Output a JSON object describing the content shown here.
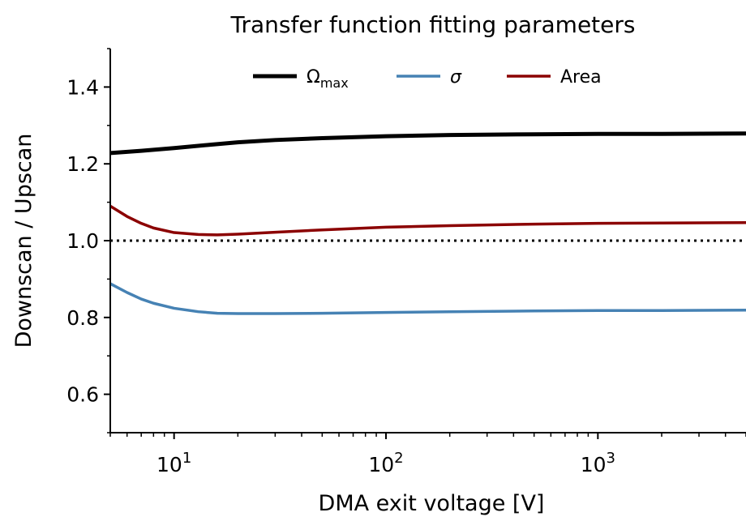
{
  "chart_data": {
    "type": "line",
    "title": "Transfer function fitting parameters",
    "xlabel": "DMA exit voltage [V]",
    "ylabel": "Downscan / Upscan",
    "xscale": "log",
    "xlim": [
      5,
      5000
    ],
    "ylim": [
      0.5,
      1.5
    ],
    "x_ticks": [
      {
        "value": 10,
        "base": "10",
        "exp": "1"
      },
      {
        "value": 100,
        "base": "10",
        "exp": "2"
      },
      {
        "value": 1000,
        "base": "10",
        "exp": "3"
      }
    ],
    "y_ticks": [
      {
        "value": 0.6,
        "label": "0.6"
      },
      {
        "value": 0.8,
        "label": "0.8"
      },
      {
        "value": 1.0,
        "label": "1.0"
      },
      {
        "value": 1.2,
        "label": "1.2"
      },
      {
        "value": 1.4,
        "label": "1.4"
      }
    ],
    "reference_line": {
      "y": 1.0,
      "style": "dotted",
      "color": "#000000"
    },
    "legend": {
      "placement": "top-center",
      "columns": 3
    },
    "series": [
      {
        "name": "Ω",
        "name_sub": "max",
        "color": "#000000",
        "points": [
          [
            5,
            1.228
          ],
          [
            7,
            1.234
          ],
          [
            10,
            1.241
          ],
          [
            15,
            1.25
          ],
          [
            20,
            1.256
          ],
          [
            30,
            1.262
          ],
          [
            50,
            1.267
          ],
          [
            100,
            1.272
          ],
          [
            200,
            1.275
          ],
          [
            500,
            1.277
          ],
          [
            1000,
            1.278
          ],
          [
            2000,
            1.278
          ],
          [
            5000,
            1.279
          ]
        ]
      },
      {
        "name": "σ",
        "color": "#4682b4",
        "points": [
          [
            5,
            0.888
          ],
          [
            6,
            0.865
          ],
          [
            7,
            0.848
          ],
          [
            8,
            0.837
          ],
          [
            10,
            0.824
          ],
          [
            13,
            0.815
          ],
          [
            16,
            0.811
          ],
          [
            20,
            0.81
          ],
          [
            30,
            0.81
          ],
          [
            50,
            0.811
          ],
          [
            100,
            0.813
          ],
          [
            200,
            0.815
          ],
          [
            500,
            0.817
          ],
          [
            1000,
            0.818
          ],
          [
            2000,
            0.818
          ],
          [
            5000,
            0.819
          ]
        ]
      },
      {
        "name": "Area",
        "color": "#8b0000",
        "points": [
          [
            5,
            1.09
          ],
          [
            6,
            1.063
          ],
          [
            7,
            1.045
          ],
          [
            8,
            1.033
          ],
          [
            10,
            1.021
          ],
          [
            13,
            1.016
          ],
          [
            16,
            1.015
          ],
          [
            20,
            1.017
          ],
          [
            30,
            1.022
          ],
          [
            50,
            1.028
          ],
          [
            100,
            1.035
          ],
          [
            200,
            1.039
          ],
          [
            500,
            1.043
          ],
          [
            1000,
            1.045
          ],
          [
            2000,
            1.046
          ],
          [
            5000,
            1.047
          ]
        ]
      }
    ]
  }
}
